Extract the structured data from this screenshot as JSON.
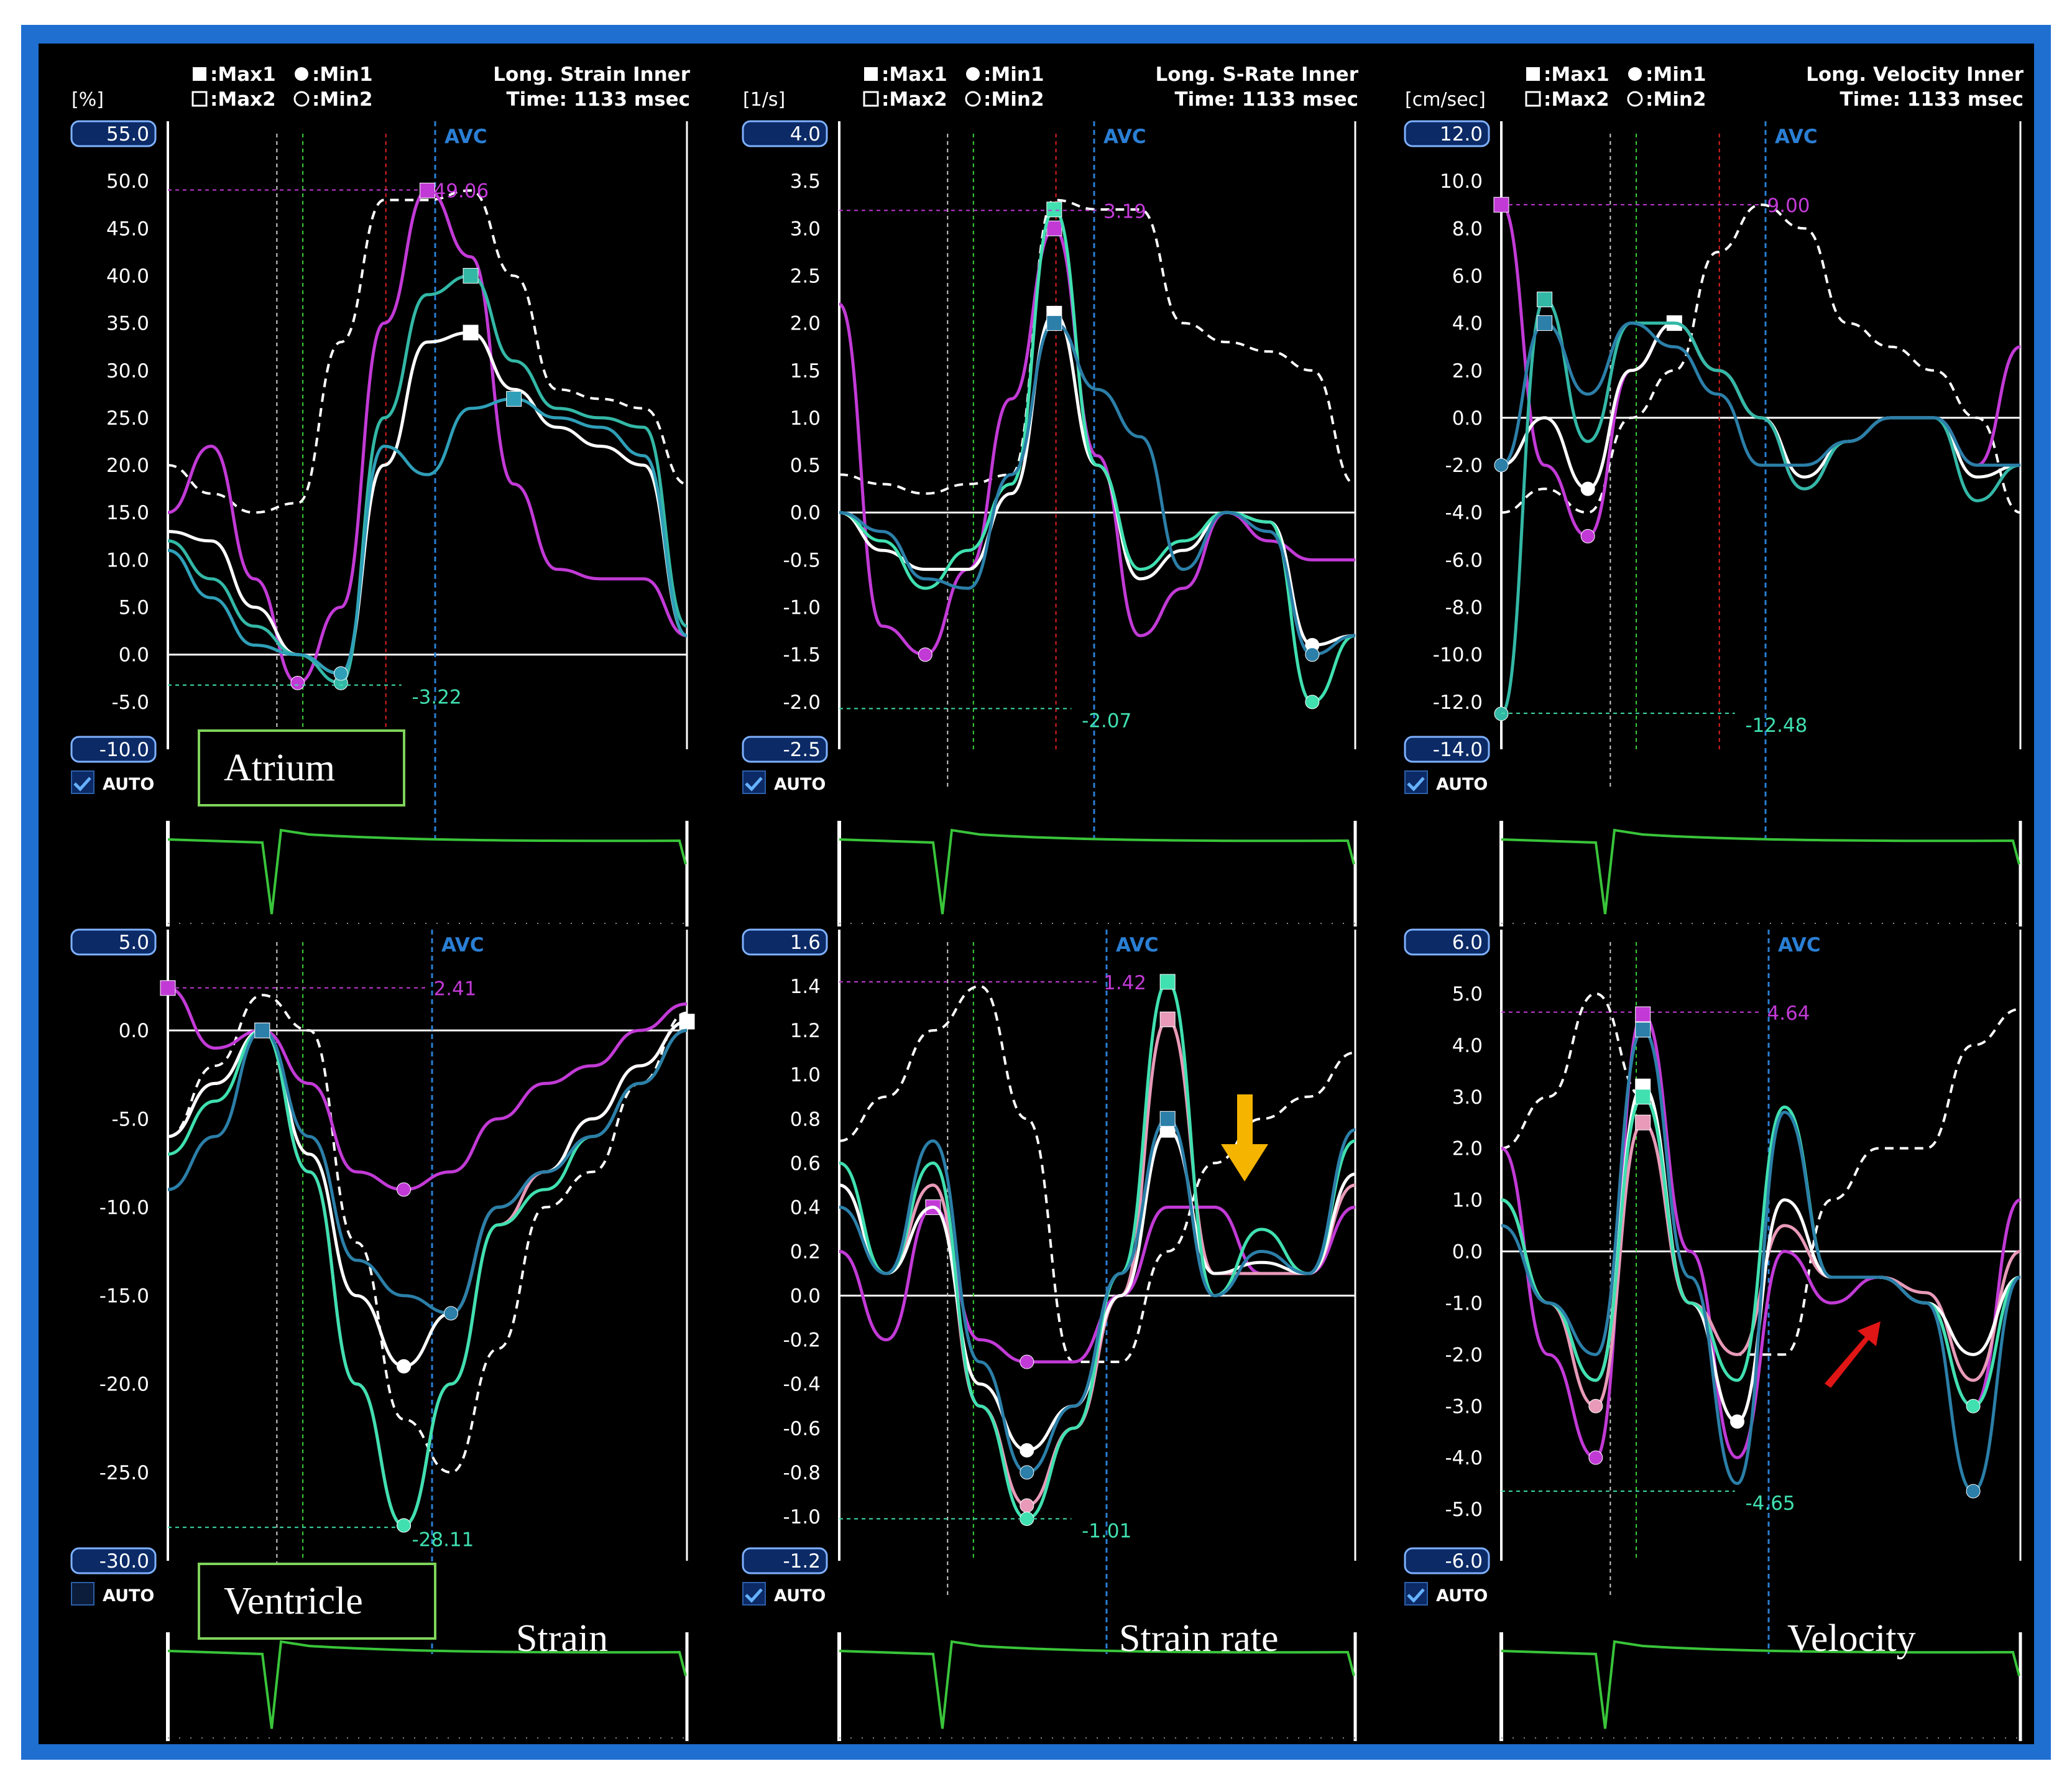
{
  "colors": {
    "frame": "#1f6fd0",
    "background": "#000000",
    "axis_badge": "#0b2a66",
    "axis_badge_border": "#7fb1ff",
    "white": "#ffffff",
    "ecg": "#39c43a",
    "avc_marker": "#2a7fd4",
    "magenta": "#c23ad6",
    "pink": "#e89ab8",
    "teal": "#33b8a6",
    "cyan_teal": "#2f9fb8",
    "blue_teal": "#2b7fa8",
    "mint": "#40e0b0",
    "label_box_border": "#7fd35a",
    "arrow_yellow": "#f4b400",
    "arrow_red": "#e01515"
  },
  "legend": {
    "max1": ":Max1",
    "min1": ":Min1",
    "max2": ":Max2",
    "min2": ":Min2"
  },
  "auto_label": "AUTO",
  "avc_label": "AVC",
  "panels": [
    {
      "id": "atrium-strain",
      "unit": "[%]",
      "title": "Long. Strain Inner",
      "time": "Time: 1133 msec",
      "y_ticks": [
        "55.0",
        "50.0",
        "45.0",
        "40.0",
        "35.0",
        "30.0",
        "25.0",
        "20.0",
        "15.0",
        "10.0",
        "5.0",
        "0.0",
        "-5.0",
        "-10.0"
      ],
      "ylim": [
        -10,
        55
      ],
      "peak_label": "49.06",
      "min_label": "-3.22",
      "auto_checked": true,
      "box_label": "Atrium"
    },
    {
      "id": "atrium-strain-rate",
      "unit": "[1/s]",
      "title": "Long. S-Rate Inner",
      "time": "Time: 1133 msec",
      "y_ticks": [
        "4.0",
        "3.5",
        "3.0",
        "2.5",
        "2.0",
        "1.5",
        "1.0",
        "0.5",
        "0.0",
        "-0.5",
        "-1.0",
        "-1.5",
        "-2.0",
        "-2.5"
      ],
      "ylim": [
        -2.5,
        4.0
      ],
      "peak_label": "3.19",
      "min_label": "-2.07",
      "auto_checked": true
    },
    {
      "id": "atrium-velocity",
      "unit": "[cm/sec]",
      "title": "Long. Velocity Inner",
      "time": "Time: 1133 msec",
      "y_ticks": [
        "12.0",
        "10.0",
        "8.0",
        "6.0",
        "4.0",
        "2.0",
        "0.0",
        "-2.0",
        "-4.0",
        "-6.0",
        "-8.0",
        "-10.0",
        "-12.0",
        "-14.0"
      ],
      "ylim": [
        -14,
        12
      ],
      "peak_label": "9.00",
      "min_label": "-12.48",
      "auto_checked": true
    },
    {
      "id": "ventricle-strain",
      "y_ticks": [
        "5.0",
        "0.0",
        "-5.0",
        "-10.0",
        "-15.0",
        "-20.0",
        "-25.0",
        "-30.0"
      ],
      "ylim": [
        -30,
        5
      ],
      "peak_label": "2.41",
      "min_label": "-28.11",
      "auto_checked": false,
      "box_label": "Ventricle",
      "caption": "Strain"
    },
    {
      "id": "ventricle-strain-rate",
      "y_ticks": [
        "1.6",
        "1.4",
        "1.2",
        "1.0",
        "0.8",
        "0.6",
        "0.4",
        "0.2",
        "0.0",
        "-0.2",
        "-0.4",
        "-0.6",
        "-0.8",
        "-1.0",
        "-1.2"
      ],
      "ylim": [
        -1.2,
        1.6
      ],
      "peak_label": "1.42",
      "min_label": "-1.01",
      "auto_checked": true,
      "caption": "Strain rate"
    },
    {
      "id": "ventricle-velocity",
      "y_ticks": [
        "6.0",
        "5.0",
        "4.0",
        "3.0",
        "2.0",
        "1.0",
        "0.0",
        "-1.0",
        "-2.0",
        "-3.0",
        "-4.0",
        "-5.0",
        "-6.0"
      ],
      "ylim": [
        -6,
        6
      ],
      "peak_label": "4.64",
      "min_label": "-4.65",
      "auto_checked": true,
      "caption": "Velocity"
    }
  ],
  "chart_data": [
    {
      "type": "line",
      "ylim": [
        -10,
        55
      ],
      "series": [
        {
          "color": "white_dashed",
          "values": [
            20,
            17,
            15,
            16,
            33,
            48,
            48,
            49,
            40,
            28,
            27,
            26,
            18
          ]
        },
        {
          "color": "magenta",
          "values": [
            15,
            22,
            8,
            -3,
            5,
            35,
            49,
            42,
            18,
            9,
            8,
            8,
            2
          ]
        },
        {
          "color": "white",
          "values": [
            13,
            12,
            5,
            0,
            -2,
            20,
            33,
            34,
            28,
            24,
            22,
            20,
            2
          ]
        },
        {
          "color": "teal",
          "values": [
            12,
            8,
            3,
            0,
            -3,
            25,
            38,
            40,
            31,
            26,
            25,
            24,
            3
          ]
        },
        {
          "color": "cyan_teal",
          "values": [
            11,
            6,
            1,
            0,
            -2,
            22,
            19,
            26,
            27,
            25,
            24,
            21,
            2
          ]
        }
      ]
    },
    {
      "type": "line",
      "ylim": [
        -2.5,
        4.0
      ],
      "series": [
        {
          "color": "white_dashed",
          "values": [
            0.4,
            0.3,
            0.2,
            0.3,
            0.4,
            3.3,
            3.2,
            3.2,
            2.0,
            1.8,
            1.7,
            1.5,
            0.3
          ]
        },
        {
          "color": "magenta",
          "values": [
            2.2,
            -1.2,
            -1.5,
            -0.6,
            1.2,
            3.0,
            0.6,
            -1.3,
            -0.8,
            0.0,
            -0.3,
            -0.5,
            -0.5
          ]
        },
        {
          "color": "white",
          "values": [
            0.0,
            -0.4,
            -0.6,
            -0.6,
            0.2,
            2.1,
            0.5,
            -0.7,
            -0.4,
            0.0,
            -0.1,
            -1.4,
            -1.3
          ]
        },
        {
          "color": "mint",
          "values": [
            0.0,
            -0.3,
            -0.8,
            -0.4,
            0.3,
            3.2,
            0.5,
            -0.6,
            -0.3,
            0.0,
            -0.1,
            -2.0,
            -1.3
          ]
        },
        {
          "color": "blue_teal",
          "values": [
            0.0,
            -0.2,
            -0.7,
            -0.8,
            0.4,
            2.0,
            1.3,
            0.8,
            -0.6,
            0.0,
            -0.2,
            -1.5,
            -1.3
          ]
        }
      ]
    },
    {
      "type": "line",
      "ylim": [
        -14,
        12
      ],
      "series": [
        {
          "color": "white_dashed",
          "values": [
            -4,
            -3,
            -4,
            0,
            2,
            7,
            9,
            8,
            4,
            3,
            2,
            0,
            -4
          ]
        },
        {
          "color": "magenta",
          "values": [
            9,
            -2,
            -5,
            2,
            4,
            2,
            0,
            -3,
            -1,
            0,
            0,
            -2,
            3
          ]
        },
        {
          "color": "white",
          "values": [
            -2,
            0,
            -3,
            2,
            4,
            2,
            0,
            -2.5,
            -1,
            0,
            0,
            -2.5,
            -2
          ]
        },
        {
          "color": "teal",
          "values": [
            -12.5,
            5,
            -1,
            4,
            4,
            2,
            0,
            -3,
            -1,
            0,
            0,
            -3.5,
            -2
          ]
        },
        {
          "color": "blue_teal",
          "values": [
            -2,
            4,
            1,
            4,
            3,
            1,
            -2,
            -2,
            -1,
            0,
            0,
            -2,
            -2
          ]
        }
      ]
    },
    {
      "type": "line",
      "ylim": [
        -30,
        5
      ],
      "series": [
        {
          "color": "white_dashed",
          "values": [
            -6,
            -2,
            2,
            0,
            -12,
            -22,
            -25,
            -18,
            -10,
            -8,
            -3,
            1
          ]
        },
        {
          "color": "magenta",
          "values": [
            2.4,
            -1,
            0,
            -3,
            -8,
            -9,
            -8,
            -5,
            -3,
            -2,
            0,
            1.5
          ]
        },
        {
          "color": "pink",
          "values": [
            -6,
            -3,
            0,
            -8,
            -20,
            -28,
            -20,
            -11,
            -8,
            -5,
            -2,
            0.5
          ]
        },
        {
          "color": "white",
          "values": [
            -6,
            -3,
            0,
            -7,
            -15,
            -19,
            -16,
            -10,
            -8,
            -5,
            -2,
            0.5
          ]
        },
        {
          "color": "mint",
          "values": [
            -7,
            -4,
            0,
            -8,
            -20,
            -28,
            -20,
            -11,
            -9,
            -6,
            -3,
            0
          ]
        },
        {
          "color": "blue_teal",
          "values": [
            -9,
            -6,
            0,
            -6,
            -13,
            -15,
            -16,
            -10,
            -8,
            -6,
            -3,
            0
          ]
        }
      ]
    },
    {
      "type": "line",
      "ylim": [
        -1.2,
        1.6
      ],
      "series": [
        {
          "color": "white_dashed",
          "values": [
            0.7,
            0.9,
            1.2,
            1.4,
            0.8,
            -0.3,
            -0.3,
            0.2,
            0.6,
            0.8,
            0.9,
            1.1
          ]
        },
        {
          "color": "magenta",
          "values": [
            0.2,
            -0.2,
            0.4,
            -0.2,
            -0.3,
            -0.3,
            0.0,
            0.4,
            0.4,
            0.1,
            0.1,
            0.4
          ]
        },
        {
          "color": "pink",
          "values": [
            0.5,
            0.1,
            0.5,
            -0.5,
            -0.95,
            -0.6,
            0.0,
            1.25,
            0.1,
            0.1,
            0.1,
            0.5
          ]
        },
        {
          "color": "white",
          "values": [
            0.5,
            0.1,
            0.4,
            -0.4,
            -0.7,
            -0.5,
            0.0,
            0.75,
            0.1,
            0.15,
            0.1,
            0.55
          ]
        },
        {
          "color": "mint",
          "values": [
            0.6,
            0.1,
            0.6,
            -0.5,
            -1.01,
            -0.6,
            0.1,
            1.42,
            0.0,
            0.3,
            0.1,
            0.7
          ]
        },
        {
          "color": "blue_teal",
          "values": [
            0.4,
            0.1,
            0.7,
            -0.3,
            -0.8,
            -0.5,
            0.1,
            0.8,
            0.0,
            0.2,
            0.1,
            0.75
          ]
        }
      ]
    },
    {
      "type": "line",
      "ylim": [
        -6,
        6
      ],
      "series": [
        {
          "color": "white_dashed",
          "values": [
            2,
            3,
            5,
            3,
            -1,
            -2,
            -2,
            1,
            2,
            2,
            4,
            4.7
          ]
        },
        {
          "color": "magenta",
          "values": [
            2,
            -2,
            -4,
            4.6,
            0,
            -4,
            0,
            -1,
            -0.5,
            -1,
            -3,
            1
          ]
        },
        {
          "color": "pink",
          "values": [
            1,
            -1,
            -3,
            2.5,
            -1,
            -2,
            0.5,
            -0.5,
            -0.5,
            -0.8,
            -2.5,
            0
          ]
        },
        {
          "color": "white",
          "values": [
            1,
            -1,
            -2.5,
            3.2,
            -1,
            -3.3,
            1,
            -0.5,
            -0.5,
            -1,
            -2,
            -0.5
          ]
        },
        {
          "color": "mint",
          "values": [
            1,
            -1,
            -2.5,
            3,
            -1,
            -2.5,
            2.8,
            -0.5,
            -0.5,
            -1,
            -3,
            -0.5
          ]
        },
        {
          "color": "blue_teal",
          "values": [
            0.5,
            -1,
            -2,
            4.3,
            -0.5,
            -4.5,
            2.7,
            -0.5,
            -0.5,
            -1,
            -4.65,
            -0.5
          ]
        }
      ]
    }
  ]
}
